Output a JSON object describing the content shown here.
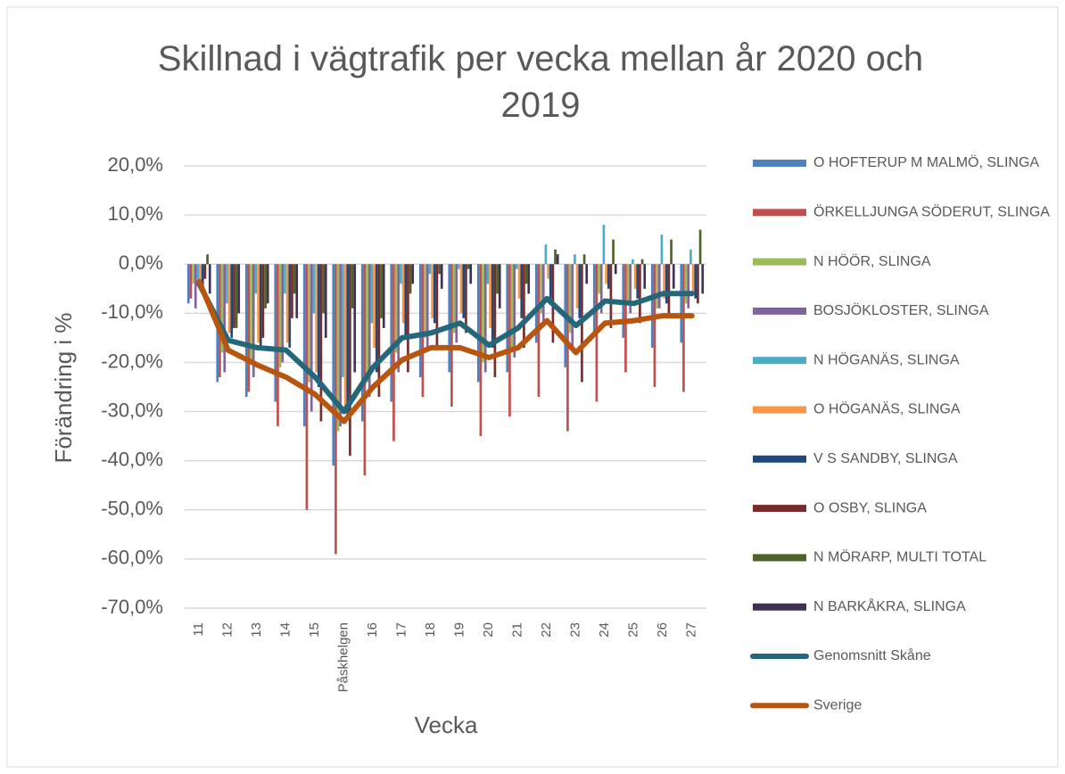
{
  "chart_data": {
    "type": "bar_line",
    "title": "Skillnad i vägtrafik per vecka mellan år 2020 och 2019",
    "y_label": "Förändring i %",
    "x_label": "Vecka",
    "categories": [
      "11",
      "12",
      "13",
      "14",
      "15",
      "Påskhelgen",
      "16",
      "17",
      "18",
      "19",
      "20",
      "21",
      "22",
      "23",
      "24",
      "25",
      "26",
      "27"
    ],
    "ylim": [
      -70,
      20
    ],
    "yticks": [
      {
        "value": -70,
        "label": "-70,0%"
      },
      {
        "value": -60,
        "label": "-60,0%"
      },
      {
        "value": -50,
        "label": "-50,0%"
      },
      {
        "value": -40,
        "label": "-40,0%"
      },
      {
        "value": -30,
        "label": "-30,0%"
      },
      {
        "value": -20,
        "label": "-20,0%"
      },
      {
        "value": -10,
        "label": "-10,0%"
      },
      {
        "value": 0,
        "label": "0,0%"
      },
      {
        "value": 10,
        "label": "10,0%"
      },
      {
        "value": 20,
        "label": "20,0%"
      }
    ],
    "grid": true,
    "legend": "right",
    "series": [
      {
        "name": "O HOFTERUP M MALMÖ, SLINGA",
        "type": "bar",
        "color": "#4f81bd",
        "values": [
          -8,
          -24,
          -27,
          -28,
          -33,
          -41,
          -32,
          -28,
          -23,
          -22,
          -24,
          -22,
          -16,
          -21,
          -14,
          -15,
          -17,
          -16
        ]
      },
      {
        "name": "ÖRKELLJUNGA SÖDERUT, SLINGA",
        "type": "bar",
        "color": "#c0504d",
        "values": [
          -7,
          -23,
          -26,
          -33,
          -50,
          -59,
          -43,
          -36,
          -27,
          -29,
          -35,
          -31,
          -27,
          -34,
          -28,
          -22,
          -25,
          -26
        ]
      },
      {
        "name": "N HÖÖR, SLINGA",
        "type": "bar",
        "color": "#9bbb59",
        "values": [
          -4,
          -18,
          -20,
          -21,
          -24,
          -34,
          -24,
          -18,
          -15,
          -14,
          -20,
          -17,
          -10,
          -14,
          -6,
          -8,
          -9,
          -8
        ]
      },
      {
        "name": "BOSJÖKLOSTER, SLINGA",
        "type": "bar",
        "color": "#8064a2",
        "values": [
          -9,
          -22,
          -23,
          -20,
          -30,
          -33,
          -27,
          -22,
          -17,
          -16,
          -22,
          -19,
          -12,
          -17,
          -10,
          -10,
          -9,
          -9
        ]
      },
      {
        "name": "N HÖGANÄS, SLINGA",
        "type": "bar",
        "color": "#4bacc6",
        "values": [
          -3,
          -8,
          -6,
          -6,
          -10,
          -23,
          -12,
          -4,
          -2,
          -1,
          -4,
          -1,
          4,
          2,
          8,
          1,
          6,
          3
        ]
      },
      {
        "name": "O HÖGANÄS, SLINGA",
        "type": "bar",
        "color": "#f79646",
        "values": [
          -4,
          -14,
          -16,
          -16,
          -22,
          -29,
          -17,
          -12,
          -11,
          -10,
          -13,
          -7,
          -3,
          -9,
          -4,
          -5,
          -7,
          -6
        ]
      },
      {
        "name": "V S SANDBY, SLINGA",
        "type": "bar",
        "color": "#1f497d",
        "values": [
          -6,
          -15,
          -17,
          -17,
          -25,
          -31,
          -22,
          -15,
          -12,
          -11,
          -17,
          -11,
          -7,
          -11,
          -5,
          -7,
          -8,
          -7
        ]
      },
      {
        "name": "O OSBY, SLINGA",
        "type": "bar",
        "color": "#772c2a",
        "values": [
          -3,
          -13,
          -15,
          -11,
          -32,
          -39,
          -27,
          -22,
          -17,
          -14,
          -23,
          -17,
          -16,
          -24,
          -13,
          -12,
          -10,
          -8
        ]
      },
      {
        "name": "N MÖRARP, MULTI TOTAL",
        "type": "bar",
        "color": "#4f6228",
        "values": [
          2,
          -13,
          -9,
          -6,
          -10,
          -9,
          -11,
          -6,
          -2,
          -1,
          -6,
          -4,
          3,
          2,
          5,
          1,
          5,
          7
        ]
      },
      {
        "name": "N BARKÅKRA, SLINGA",
        "type": "bar",
        "color": "#403152",
        "values": [
          -6,
          -10,
          -8,
          -11,
          -15,
          -22,
          -13,
          -4,
          -5,
          -4,
          -9,
          -6,
          2,
          -4,
          -2,
          -5,
          -5,
          -6
        ]
      },
      {
        "name": "Genomsnitt Skåne",
        "type": "line",
        "color": "#25677a",
        "values": [
          -4,
          -15.5,
          -17,
          -17.5,
          -23,
          -30,
          -21,
          -15,
          -14,
          -12,
          -16.5,
          -13,
          -7,
          -12.5,
          -7.5,
          -8,
          -6,
          -6
        ]
      },
      {
        "name": "Sverige",
        "type": "line",
        "color": "#b8560f",
        "values": [
          -3.5,
          -17.5,
          -20.5,
          -23,
          -26.5,
          -32,
          -25,
          -19.5,
          -17,
          -17,
          -19,
          -17,
          -11.5,
          -18,
          -12,
          -11.5,
          -10.5,
          -10.5
        ]
      }
    ]
  }
}
